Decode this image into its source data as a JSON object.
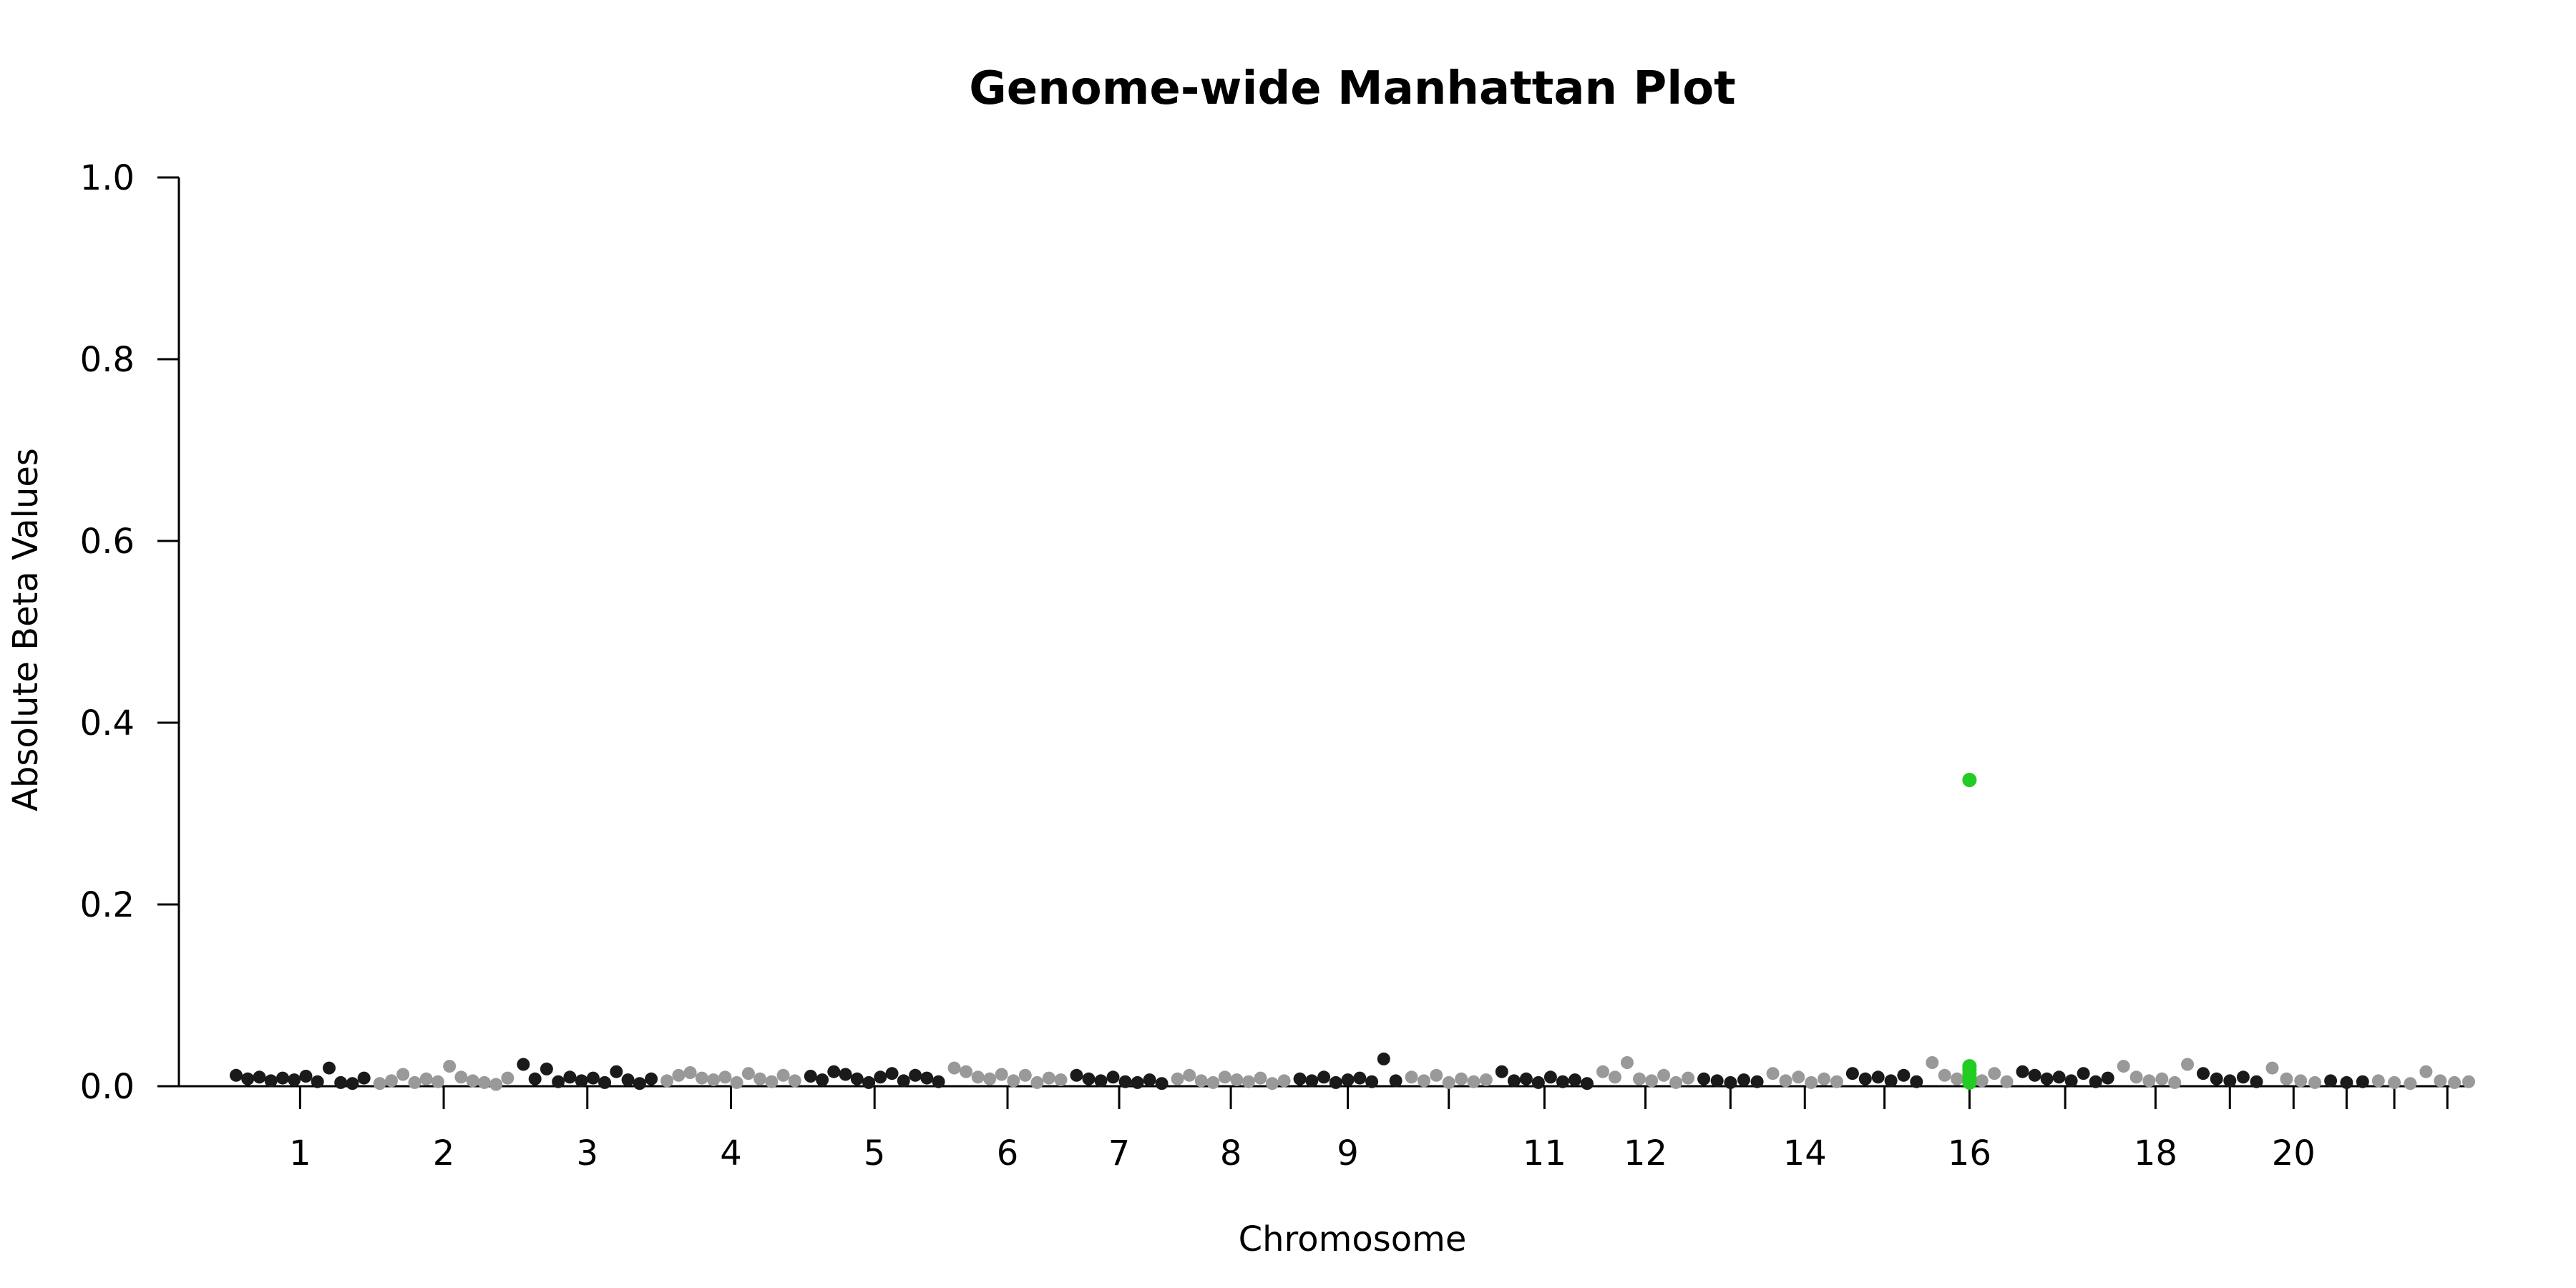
{
  "chart_data": {
    "type": "scatter",
    "title": "Genome-wide Manhattan Plot",
    "xlabel": "Chromosome",
    "ylabel": "Absolute Beta Values",
    "ylim": [
      0,
      1.0
    ],
    "yticks": [
      "0.0",
      "0.2",
      "0.4",
      "0.6",
      "0.8",
      "1.0"
    ],
    "grid": false,
    "colors": {
      "odd": "#1a1a1a",
      "even": "#999999",
      "highlight": "#22cc22"
    },
    "chromosomes": [
      {
        "chr": "1",
        "label": "1",
        "color": "odd",
        "points": [
          0.012,
          0.008,
          0.01,
          0.006,
          0.009,
          0.007,
          0.011,
          0.005,
          0.02,
          0.004,
          0.003,
          0.009
        ]
      },
      {
        "chr": "2",
        "label": "2",
        "color": "even",
        "points": [
          0.003,
          0.006,
          0.013,
          0.004,
          0.008,
          0.005,
          0.022,
          0.01,
          0.006,
          0.004,
          0.002,
          0.009
        ]
      },
      {
        "chr": "3",
        "label": "3",
        "color": "odd",
        "points": [
          0.024,
          0.008,
          0.019,
          0.005,
          0.01,
          0.006,
          0.009,
          0.004,
          0.016,
          0.007,
          0.003,
          0.008
        ]
      },
      {
        "chr": "4",
        "label": "4",
        "color": "even",
        "points": [
          0.006,
          0.012,
          0.015,
          0.009,
          0.007,
          0.01,
          0.004,
          0.014,
          0.008,
          0.005,
          0.012,
          0.006
        ]
      },
      {
        "chr": "5",
        "label": "5",
        "color": "odd",
        "points": [
          0.011,
          0.007,
          0.016,
          0.013,
          0.008,
          0.004,
          0.01,
          0.014,
          0.006,
          0.012,
          0.009,
          0.005
        ]
      },
      {
        "chr": "6",
        "label": "6",
        "color": "even",
        "points": [
          0.02,
          0.016,
          0.01,
          0.008,
          0.013,
          0.006,
          0.012,
          0.004,
          0.009,
          0.007
        ]
      },
      {
        "chr": "7",
        "label": "7",
        "color": "odd",
        "points": [
          0.012,
          0.008,
          0.006,
          0.01,
          0.005,
          0.004,
          0.007,
          0.003
        ]
      },
      {
        "chr": "8",
        "label": "8",
        "color": "even",
        "points": [
          0.008,
          0.012,
          0.006,
          0.004,
          0.01,
          0.007,
          0.005,
          0.009,
          0.003,
          0.006
        ]
      },
      {
        "chr": "9",
        "label": "9",
        "color": "odd",
        "points": [
          0.008,
          0.006,
          0.01,
          0.004,
          0.007,
          0.009,
          0.005,
          0.03,
          0.006
        ]
      },
      {
        "chr": "10",
        "label": "",
        "color": "even",
        "points": [
          0.01,
          0.006,
          0.012,
          0.004,
          0.008,
          0.005,
          0.007
        ]
      },
      {
        "chr": "11",
        "label": "11",
        "color": "odd",
        "points": [
          0.016,
          0.006,
          0.008,
          0.004,
          0.01,
          0.005,
          0.007,
          0.003
        ]
      },
      {
        "chr": "12",
        "label": "12",
        "color": "even",
        "points": [
          0.016,
          0.01,
          0.026,
          0.008,
          0.006,
          0.012,
          0.004,
          0.009
        ]
      },
      {
        "chr": "13",
        "label": "",
        "color": "odd",
        "points": [
          0.008,
          0.006,
          0.004,
          0.007,
          0.005
        ]
      },
      {
        "chr": "14",
        "label": "14",
        "color": "even",
        "points": [
          0.014,
          0.006,
          0.01,
          0.004,
          0.008,
          0.005
        ]
      },
      {
        "chr": "15",
        "label": "",
        "color": "odd",
        "points": [
          0.014,
          0.008,
          0.01,
          0.006,
          0.012,
          0.005
        ]
      },
      {
        "chr": "16",
        "label": "16",
        "color": "even",
        "points": [
          0.026,
          0.012,
          0.008,
          0.01,
          0.006,
          0.014,
          0.005
        ]
      },
      {
        "chr": "17",
        "label": "",
        "color": "odd",
        "points": [
          0.016,
          0.012,
          0.008,
          0.01,
          0.006,
          0.014,
          0.005,
          0.009
        ]
      },
      {
        "chr": "18",
        "label": "18",
        "color": "even",
        "points": [
          0.022,
          0.01,
          0.006,
          0.008,
          0.004,
          0.024
        ]
      },
      {
        "chr": "19",
        "label": "",
        "color": "odd",
        "points": [
          0.014,
          0.008,
          0.006,
          0.01,
          0.005
        ]
      },
      {
        "chr": "20",
        "label": "20",
        "color": "even",
        "points": [
          0.02,
          0.008,
          0.006,
          0.004
        ]
      },
      {
        "chr": "21",
        "label": "",
        "color": "odd",
        "points": [
          0.006,
          0.004,
          0.005
        ]
      },
      {
        "chr": "22",
        "label": "",
        "color": "even",
        "points": [
          0.006,
          0.004,
          0.003
        ]
      },
      {
        "chr": "X",
        "label": "",
        "color": "even",
        "points": [
          0.016,
          0.006,
          0.004,
          0.005
        ]
      }
    ],
    "highlight": {
      "chr": "16",
      "color": "highlight",
      "points": [
        0.337,
        0.022,
        0.018,
        0.014,
        0.01,
        0.007,
        0.004
      ]
    }
  }
}
